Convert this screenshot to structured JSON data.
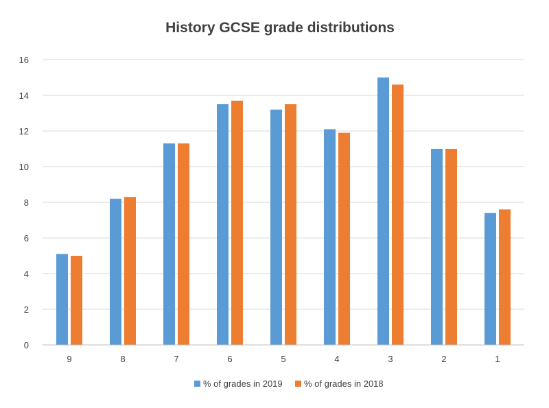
{
  "chart_data": {
    "type": "bar",
    "title": "History GCSE grade distributions",
    "xlabel": "",
    "ylabel": "",
    "categories": [
      "9",
      "8",
      "7",
      "6",
      "5",
      "4",
      "3",
      "2",
      "1"
    ],
    "series": [
      {
        "name": "% of grades in 2019",
        "color": "#5b9bd5",
        "values": [
          5.1,
          8.2,
          11.3,
          13.5,
          13.2,
          12.1,
          15.0,
          11.0,
          7.4
        ]
      },
      {
        "name": "% of grades in 2018",
        "color": "#ed7d31",
        "values": [
          5.0,
          8.3,
          11.3,
          13.7,
          13.5,
          11.9,
          14.6,
          11.0,
          7.6
        ]
      }
    ],
    "ylim": [
      0,
      16
    ],
    "yticks": [
      0,
      2,
      4,
      6,
      8,
      10,
      12,
      14,
      16
    ],
    "grid": true,
    "legend_position": "bottom"
  }
}
